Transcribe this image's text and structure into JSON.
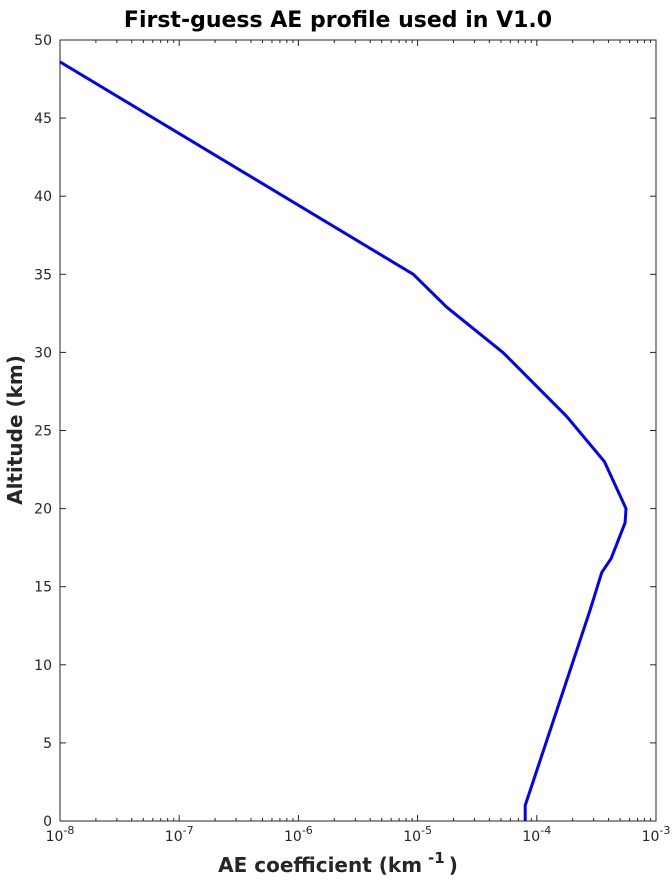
{
  "chart_data": {
    "type": "line",
    "title": "First-guess AE profile used in V1.0",
    "xlabel": "AE coefficient (km",
    "xlabel_sup": "-1",
    "xlabel_end": ")",
    "ylabel": "Altitude (km)",
    "xscale": "log",
    "xlim": [
      1e-08,
      0.001
    ],
    "ylim": [
      0,
      50
    ],
    "xticks": [
      -8,
      -7,
      -6,
      -5,
      -4,
      -3
    ],
    "yticks": [
      0,
      5,
      10,
      15,
      20,
      25,
      30,
      35,
      40,
      45,
      50
    ],
    "grid": false,
    "series": [
      {
        "color": "#0000ff",
        "x": [
          1e-08,
          9.2e-06,
          1.75e-05,
          5.2e-05,
          0.000178,
          0.00037,
          0.00056,
          0.00055,
          0.00042,
          0.00035,
          0.00028,
          8e-05,
          8e-05
        ],
        "y": [
          48.6,
          35.0,
          32.9,
          30.0,
          25.9,
          23.0,
          20.0,
          19.1,
          16.8,
          15.9,
          13.5,
          1.0,
          0.0
        ]
      }
    ]
  }
}
